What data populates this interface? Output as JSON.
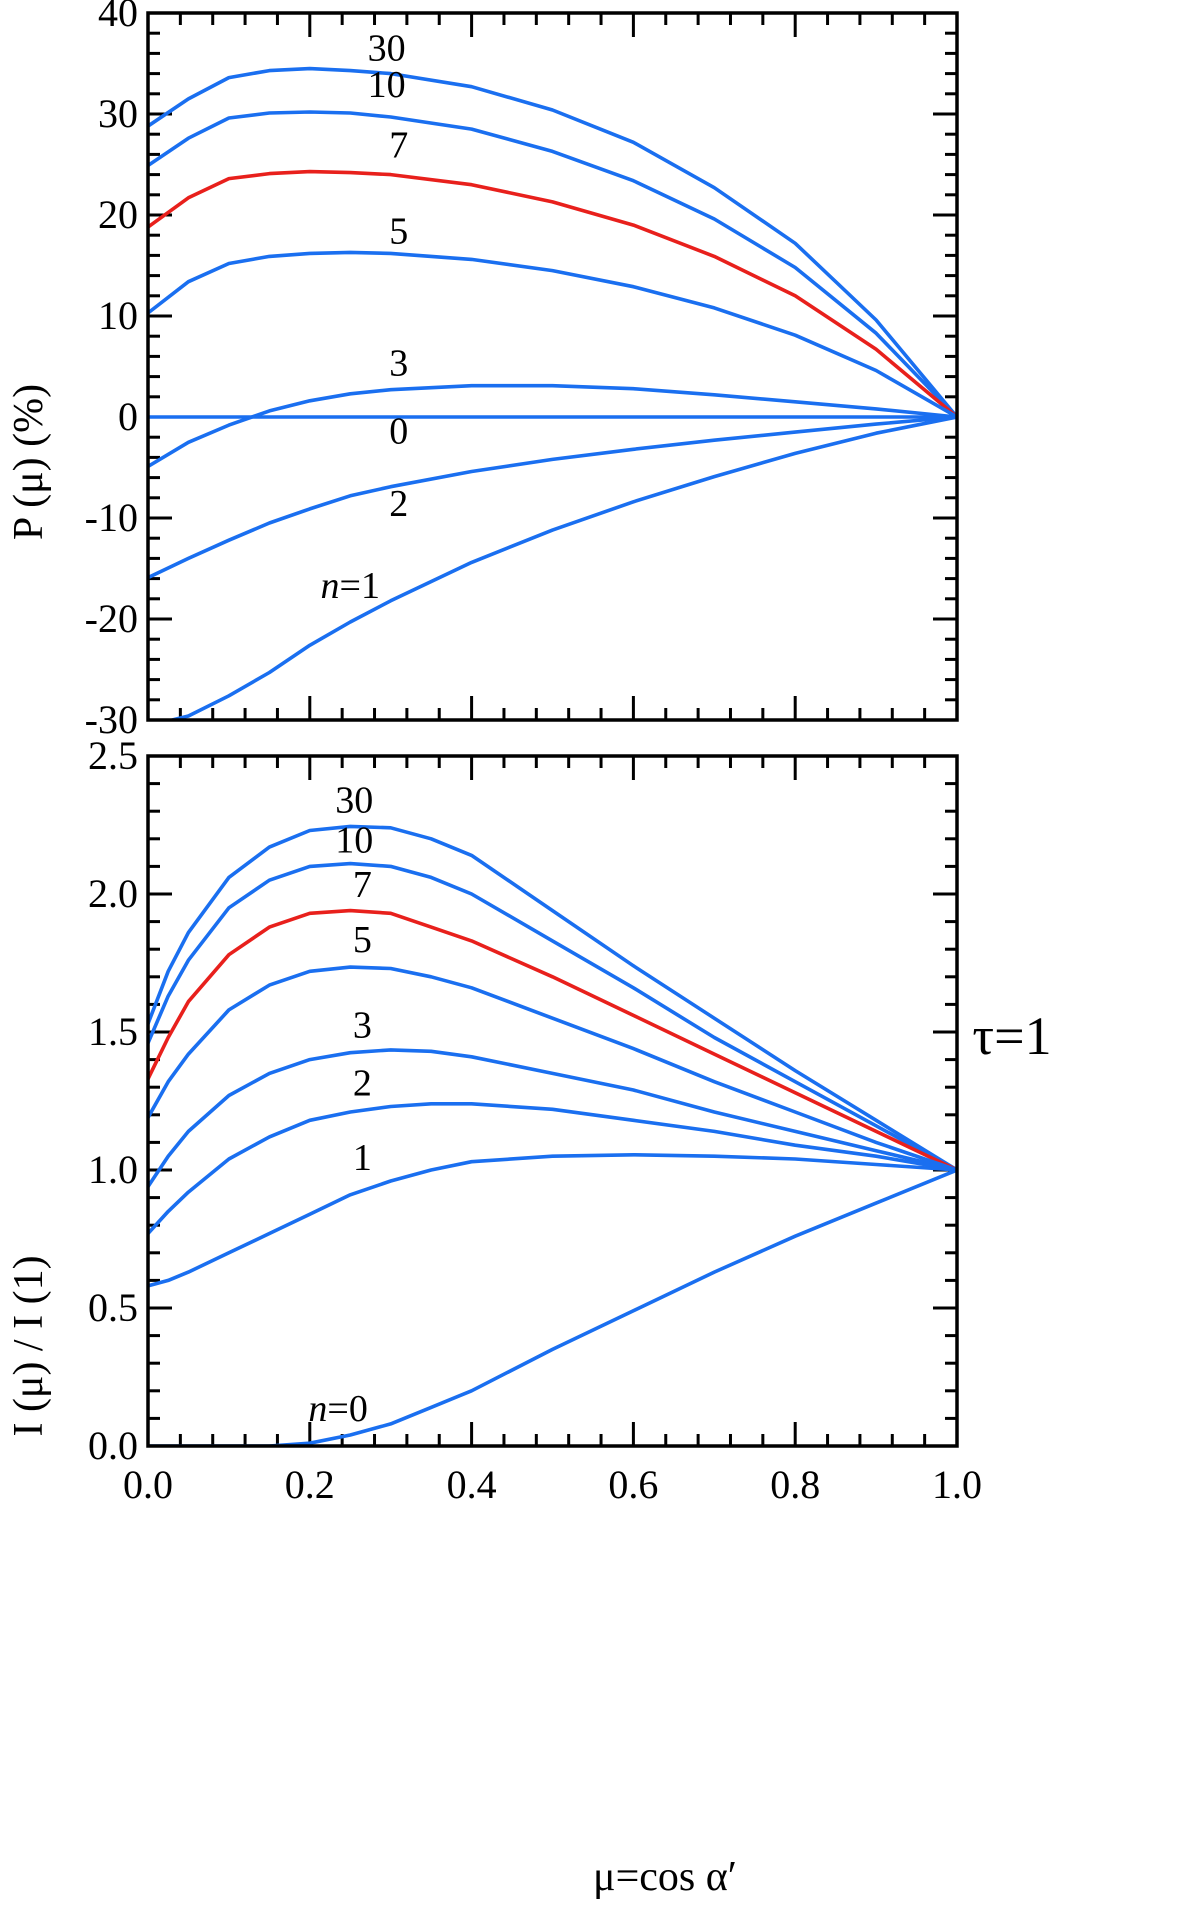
{
  "colors": {
    "blue": "#1a6ff0",
    "red": "#e8201c"
  },
  "chart_data": [
    {
      "type": "line",
      "ylabel": "P (μ)  (%)",
      "xlim": [
        0,
        1
      ],
      "ylim": [
        -30,
        40
      ],
      "yticks": [
        "40",
        "30",
        "20",
        "10",
        "0",
        "-10",
        "-20",
        "-30"
      ],
      "xticks": [],
      "series": [
        {
          "name": "30",
          "label": "30",
          "color": "red_blue:blue",
          "x": [
            0,
            0.05,
            0.1,
            0.15,
            0.2,
            0.25,
            0.3,
            0.4,
            0.5,
            0.6,
            0.7,
            0.8,
            0.9,
            1.0
          ],
          "y": [
            28.8,
            31.5,
            33.6,
            34.3,
            34.5,
            34.3,
            34.0,
            32.7,
            30.4,
            27.2,
            22.7,
            17.2,
            9.6,
            0
          ]
        },
        {
          "name": "10",
          "label": "10",
          "color": "blue",
          "x": [
            0,
            0.05,
            0.1,
            0.15,
            0.2,
            0.25,
            0.3,
            0.4,
            0.5,
            0.6,
            0.7,
            0.8,
            0.9,
            1.0
          ],
          "y": [
            24.9,
            27.6,
            29.6,
            30.1,
            30.2,
            30.1,
            29.7,
            28.5,
            26.3,
            23.4,
            19.6,
            14.8,
            8.3,
            0
          ]
        },
        {
          "name": "7",
          "label": "7",
          "color": "red",
          "x": [
            0,
            0.05,
            0.1,
            0.15,
            0.2,
            0.25,
            0.3,
            0.4,
            0.5,
            0.6,
            0.7,
            0.8,
            0.9,
            1.0
          ],
          "y": [
            18.8,
            21.7,
            23.6,
            24.1,
            24.3,
            24.2,
            24.0,
            23.0,
            21.3,
            19.0,
            15.9,
            12.0,
            6.7,
            0
          ]
        },
        {
          "name": "5",
          "label": "5",
          "color": "blue",
          "x": [
            0,
            0.05,
            0.1,
            0.15,
            0.2,
            0.25,
            0.3,
            0.4,
            0.5,
            0.6,
            0.7,
            0.8,
            0.9,
            1.0
          ],
          "y": [
            10.3,
            13.4,
            15.2,
            15.9,
            16.2,
            16.3,
            16.2,
            15.6,
            14.5,
            12.9,
            10.8,
            8.1,
            4.6,
            0
          ]
        },
        {
          "name": "3",
          "label": "3",
          "color": "blue",
          "x": [
            0,
            0.05,
            0.1,
            0.15,
            0.2,
            0.25,
            0.3,
            0.4,
            0.5,
            0.6,
            0.7,
            0.8,
            0.9,
            1.0
          ],
          "y": [
            -4.9,
            -2.5,
            -0.8,
            0.6,
            1.6,
            2.3,
            2.7,
            3.1,
            3.1,
            2.8,
            2.2,
            1.5,
            0.8,
            0
          ]
        },
        {
          "name": "0",
          "label": "0",
          "color": "blue",
          "x": [
            0,
            1.0
          ],
          "y": [
            0,
            0
          ]
        },
        {
          "name": "2",
          "label": "2",
          "color": "blue",
          "x": [
            0,
            0.05,
            0.1,
            0.15,
            0.2,
            0.25,
            0.3,
            0.4,
            0.5,
            0.6,
            0.7,
            0.8,
            0.9,
            1.0
          ],
          "y": [
            -15.9,
            -14.0,
            -12.2,
            -10.5,
            -9.1,
            -7.8,
            -6.9,
            -5.4,
            -4.2,
            -3.2,
            -2.3,
            -1.5,
            -0.7,
            0
          ]
        },
        {
          "name": "n=1",
          "label": "n=1",
          "color": "blue",
          "x": [
            0.03,
            0.05,
            0.1,
            0.15,
            0.2,
            0.25,
            0.3,
            0.4,
            0.5,
            0.6,
            0.7,
            0.8,
            0.9,
            1.0
          ],
          "y": [
            -30,
            -29.6,
            -27.6,
            -25.3,
            -22.6,
            -20.3,
            -18.2,
            -14.4,
            -11.2,
            -8.4,
            -5.9,
            -3.6,
            -1.6,
            0
          ]
        }
      ],
      "curve_labels": [
        {
          "text": "30",
          "x": 0.295,
          "y": 35.3
        },
        {
          "text": "10",
          "x": 0.295,
          "y": 31.7
        },
        {
          "text": "7",
          "x": 0.31,
          "y": 25.7
        },
        {
          "text": "5",
          "x": 0.31,
          "y": 17.2
        },
        {
          "text": "3",
          "x": 0.31,
          "y": 4.1
        },
        {
          "text": "0",
          "x": 0.31,
          "y": -2.6
        },
        {
          "text": "2",
          "x": 0.31,
          "y": -9.8
        },
        {
          "text_n": "n",
          "text_rest": "=1",
          "x": 0.25,
          "y": -17.9
        }
      ]
    },
    {
      "type": "line",
      "ylabel": "I (μ) / I (1)",
      "xlabel": "μ=cos α′",
      "xlim": [
        0,
        1
      ],
      "ylim": [
        0,
        2.5
      ],
      "annotation": "τ=1",
      "yticks": [
        "2.5",
        "2.0",
        "1.5",
        "1.0",
        "0.5",
        "0.0"
      ],
      "xticks": [
        "0.0",
        "0.2",
        "0.4",
        "0.6",
        "0.8",
        "1.0"
      ],
      "series": [
        {
          "name": "30",
          "label": "30",
          "color": "blue",
          "x": [
            0,
            0.025,
            0.05,
            0.1,
            0.15,
            0.2,
            0.25,
            0.3,
            0.35,
            0.4,
            0.5,
            0.6,
            0.7,
            0.8,
            0.9,
            1.0
          ],
          "y": [
            1.53,
            1.72,
            1.86,
            2.06,
            2.17,
            2.23,
            2.245,
            2.24,
            2.2,
            2.14,
            1.94,
            1.74,
            1.55,
            1.36,
            1.18,
            1.0
          ]
        },
        {
          "name": "10",
          "label": "10",
          "color": "blue",
          "x": [
            0,
            0.025,
            0.05,
            0.1,
            0.15,
            0.2,
            0.25,
            0.3,
            0.35,
            0.4,
            0.5,
            0.6,
            0.7,
            0.8,
            0.9,
            1.0
          ],
          "y": [
            1.46,
            1.63,
            1.76,
            1.95,
            2.05,
            2.1,
            2.11,
            2.1,
            2.06,
            2.0,
            1.83,
            1.66,
            1.48,
            1.32,
            1.16,
            1.0
          ]
        },
        {
          "name": "7",
          "label": "7",
          "color": "red",
          "x": [
            0,
            0.025,
            0.05,
            0.1,
            0.15,
            0.2,
            0.25,
            0.3,
            0.35,
            0.4,
            0.5,
            0.6,
            0.7,
            0.8,
            0.9,
            1.0
          ],
          "y": [
            1.33,
            1.48,
            1.61,
            1.78,
            1.88,
            1.93,
            1.94,
            1.93,
            1.88,
            1.83,
            1.7,
            1.56,
            1.42,
            1.28,
            1.14,
            1.0
          ]
        },
        {
          "name": "5",
          "label": "5",
          "color": "blue",
          "x": [
            0,
            0.025,
            0.05,
            0.1,
            0.15,
            0.2,
            0.25,
            0.3,
            0.35,
            0.4,
            0.5,
            0.6,
            0.7,
            0.8,
            0.9,
            1.0
          ],
          "y": [
            1.19,
            1.32,
            1.42,
            1.58,
            1.67,
            1.72,
            1.735,
            1.73,
            1.7,
            1.66,
            1.55,
            1.44,
            1.32,
            1.21,
            1.1,
            1.0
          ]
        },
        {
          "name": "3",
          "label": "3",
          "color": "blue",
          "x": [
            0,
            0.025,
            0.05,
            0.1,
            0.15,
            0.2,
            0.25,
            0.3,
            0.35,
            0.4,
            0.5,
            0.6,
            0.7,
            0.8,
            0.9,
            1.0
          ],
          "y": [
            0.94,
            1.05,
            1.14,
            1.27,
            1.35,
            1.4,
            1.425,
            1.435,
            1.43,
            1.41,
            1.35,
            1.29,
            1.21,
            1.14,
            1.07,
            1.0
          ]
        },
        {
          "name": "2",
          "label": "2",
          "color": "blue",
          "x": [
            0,
            0.025,
            0.05,
            0.1,
            0.15,
            0.2,
            0.25,
            0.3,
            0.35,
            0.4,
            0.5,
            0.6,
            0.7,
            0.8,
            0.9,
            1.0
          ],
          "y": [
            0.77,
            0.85,
            0.92,
            1.04,
            1.12,
            1.18,
            1.21,
            1.23,
            1.24,
            1.24,
            1.22,
            1.18,
            1.14,
            1.09,
            1.05,
            1.0
          ]
        },
        {
          "name": "1",
          "label": "1",
          "color": "blue",
          "x": [
            0,
            0.025,
            0.05,
            0.1,
            0.15,
            0.2,
            0.25,
            0.3,
            0.35,
            0.4,
            0.5,
            0.6,
            0.7,
            0.8,
            0.9,
            1.0
          ],
          "y": [
            0.58,
            0.6,
            0.63,
            0.7,
            0.77,
            0.84,
            0.91,
            0.96,
            1.0,
            1.03,
            1.05,
            1.055,
            1.05,
            1.04,
            1.02,
            1.0
          ]
        },
        {
          "name": "n=0",
          "label": "n=0",
          "color": "blue",
          "x": [
            0,
            0.05,
            0.1,
            0.15,
            0.2,
            0.25,
            0.3,
            0.35,
            0.4,
            0.5,
            0.6,
            0.7,
            0.8,
            0.9,
            1.0
          ],
          "y": [
            0.0,
            0.0,
            0.0,
            0.0,
            0.01,
            0.04,
            0.08,
            0.14,
            0.2,
            0.35,
            0.49,
            0.63,
            0.76,
            0.88,
            1.0
          ]
        }
      ],
      "curve_labels": [
        {
          "text": "30",
          "x": 0.255,
          "y": 2.295
        },
        {
          "text": "10",
          "x": 0.255,
          "y": 2.15
        },
        {
          "text": "7",
          "x": 0.265,
          "y": 1.99
        },
        {
          "text": "5",
          "x": 0.265,
          "y": 1.79
        },
        {
          "text": "3",
          "x": 0.265,
          "y": 1.48
        },
        {
          "text": "2",
          "x": 0.265,
          "y": 1.27
        },
        {
          "text": "1",
          "x": 0.265,
          "y": 1.0
        },
        {
          "text_n": "n",
          "text_rest": "=0",
          "x": 0.235,
          "y": 0.09
        }
      ]
    }
  ]
}
